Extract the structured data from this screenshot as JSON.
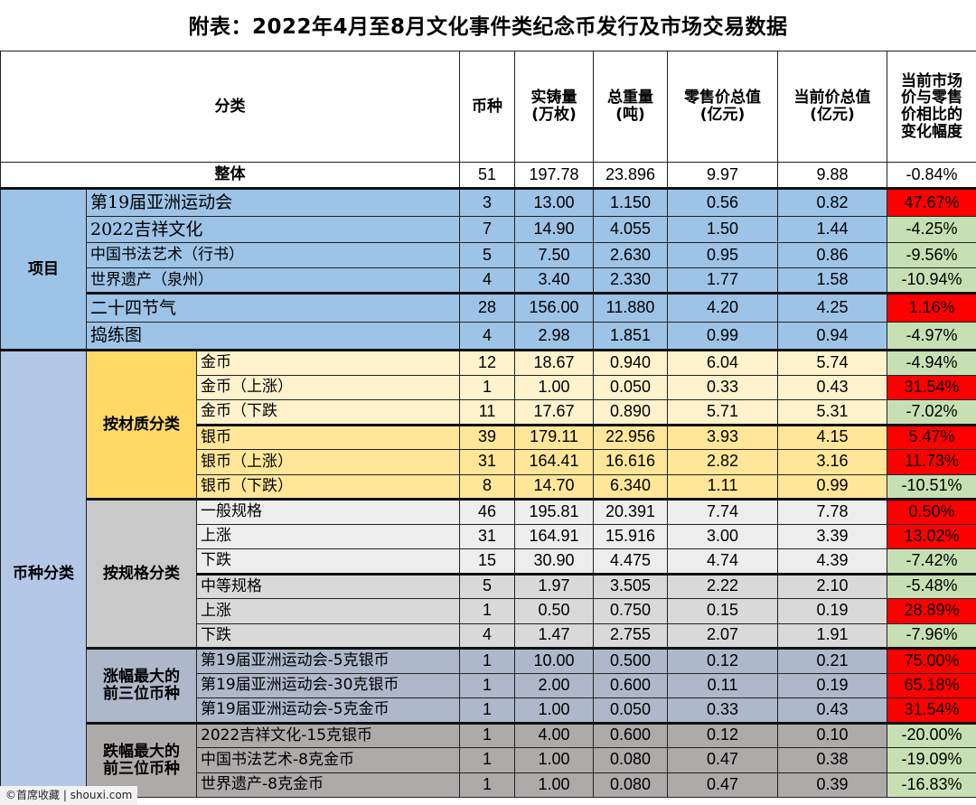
{
  "title": "附表：2022年4月至8月文化事件类纪念币发行及市场交易数据",
  "header": {
    "category": "分类",
    "count": "币种",
    "mintage": [
      "实铸量",
      "(万枚)"
    ],
    "weight": [
      "总重量",
      "(吨)"
    ],
    "retail_total": [
      "零售价总值",
      "(亿元)"
    ],
    "current_total": [
      "当前价总值",
      "(亿元)"
    ],
    "change": [
      "当前市场",
      "价与零售",
      "价相比的",
      "变化幅度"
    ]
  },
  "overall": {
    "label": "整体",
    "count": "51",
    "mintage": "197.78",
    "weight": "23.896",
    "retail": "9.97",
    "current": "9.88",
    "change": "-0.84%"
  },
  "groups": {
    "project": "项目",
    "coin_type": "币种分类",
    "by_material": "按材质分类",
    "by_spec": "按规格分类",
    "top_gain": [
      "涨幅最大的",
      "前三位币种"
    ],
    "top_loss": [
      "跌幅最大的",
      "前三位币种"
    ]
  },
  "project_rows": [
    {
      "label": "第19届亚洲运动会",
      "count": "3",
      "mintage": "13.00",
      "weight": "1.150",
      "retail": "0.56",
      "current": "0.82",
      "change": "47.67%"
    },
    {
      "label": "2022吉祥文化",
      "count": "7",
      "mintage": "14.90",
      "weight": "4.055",
      "retail": "1.50",
      "current": "1.44",
      "change": "-4.25%"
    },
    {
      "label": "中国书法艺术（行书）",
      "count": "5",
      "mintage": "7.50",
      "weight": "2.630",
      "retail": "0.95",
      "current": "0.86",
      "change": "-9.56%"
    },
    {
      "label": "世界遗产（泉州）",
      "count": "4",
      "mintage": "3.40",
      "weight": "2.330",
      "retail": "1.77",
      "current": "1.58",
      "change": "-10.94%"
    },
    {
      "label": "二十四节气",
      "count": "28",
      "mintage": "156.00",
      "weight": "11.880",
      "retail": "4.20",
      "current": "4.25",
      "change": "1.16%"
    },
    {
      "label": "捣练图",
      "count": "4",
      "mintage": "2.98",
      "weight": "1.851",
      "retail": "0.99",
      "current": "0.94",
      "change": "-4.97%"
    }
  ],
  "material_rows": [
    {
      "label": "金币",
      "count": "12",
      "mintage": "18.67",
      "weight": "0.940",
      "retail": "6.04",
      "current": "5.74",
      "change": "-4.94%"
    },
    {
      "label": "金币（上涨）",
      "count": "1",
      "mintage": "1.00",
      "weight": "0.050",
      "retail": "0.33",
      "current": "0.43",
      "change": "31.54%"
    },
    {
      "label": "金币（下跌",
      "count": "11",
      "mintage": "17.67",
      "weight": "0.890",
      "retail": "5.71",
      "current": "5.31",
      "change": "-7.02%"
    },
    {
      "label": "银币",
      "count": "39",
      "mintage": "179.11",
      "weight": "22.956",
      "retail": "3.93",
      "current": "4.15",
      "change": "5.47%"
    },
    {
      "label": "银币（上涨）",
      "count": "31",
      "mintage": "164.41",
      "weight": "16.616",
      "retail": "2.82",
      "current": "3.16",
      "change": "11.73%"
    },
    {
      "label": "银币（下跌）",
      "count": "8",
      "mintage": "14.70",
      "weight": "6.340",
      "retail": "1.11",
      "current": "0.99",
      "change": "-10.51%"
    }
  ],
  "spec_rows": [
    {
      "label": "一般规格",
      "count": "46",
      "mintage": "195.81",
      "weight": "20.391",
      "retail": "7.74",
      "current": "7.78",
      "change": "0.50%"
    },
    {
      "label": "上涨",
      "count": "31",
      "mintage": "164.91",
      "weight": "15.916",
      "retail": "3.00",
      "current": "3.39",
      "change": "13.02%"
    },
    {
      "label": "下跌",
      "count": "15",
      "mintage": "30.90",
      "weight": "4.475",
      "retail": "4.74",
      "current": "4.39",
      "change": "-7.42%"
    },
    {
      "label": "中等规格",
      "count": "5",
      "mintage": "1.97",
      "weight": "3.505",
      "retail": "2.22",
      "current": "2.10",
      "change": "-5.48%"
    },
    {
      "label": "上涨",
      "count": "1",
      "mintage": "0.50",
      "weight": "0.750",
      "retail": "0.15",
      "current": "0.19",
      "change": "28.89%"
    },
    {
      "label": "下跌",
      "count": "4",
      "mintage": "1.47",
      "weight": "2.755",
      "retail": "2.07",
      "current": "1.91",
      "change": "-7.96%"
    }
  ],
  "gain_rows": [
    {
      "label": "第19届亚洲运动会-5克银币",
      "count": "1",
      "mintage": "10.00",
      "weight": "0.500",
      "retail": "0.12",
      "current": "0.21",
      "change": "75.00%"
    },
    {
      "label": "第19届亚洲运动会-30克银币",
      "count": "1",
      "mintage": "2.00",
      "weight": "0.600",
      "retail": "0.11",
      "current": "0.19",
      "change": "65.18%"
    },
    {
      "label": "第19届亚洲运动会-5克金币",
      "count": "1",
      "mintage": "1.00",
      "weight": "0.050",
      "retail": "0.33",
      "current": "0.43",
      "change": "31.54%"
    }
  ],
  "loss_rows": [
    {
      "label": "2022吉祥文化-15克银币",
      "count": "1",
      "mintage": "4.00",
      "weight": "0.600",
      "retail": "0.12",
      "current": "0.10",
      "change": "-20.00%"
    },
    {
      "label": "中国书法艺术-8克金币",
      "count": "1",
      "mintage": "1.00",
      "weight": "0.080",
      "retail": "0.47",
      "current": "0.38",
      "change": "-19.09%"
    },
    {
      "label": "世界遗产-8克金币",
      "count": "1",
      "mintage": "1.00",
      "weight": "0.080",
      "retail": "0.47",
      "current": "0.39",
      "change": "-16.83%"
    }
  ],
  "colors": {
    "positive_change": "#ff0000",
    "negative_change": "#c6e0b4",
    "project_blue": "#9dc3e6",
    "coin_type_blue": "#b4c7e7",
    "material_gold": "#ffd966",
    "spec_gray": "#c9c9c9",
    "gain_steel": "#adb9ca",
    "loss_taupe": "#aeaaaa"
  },
  "watermark": "©首席收藏 | shouxi.com"
}
